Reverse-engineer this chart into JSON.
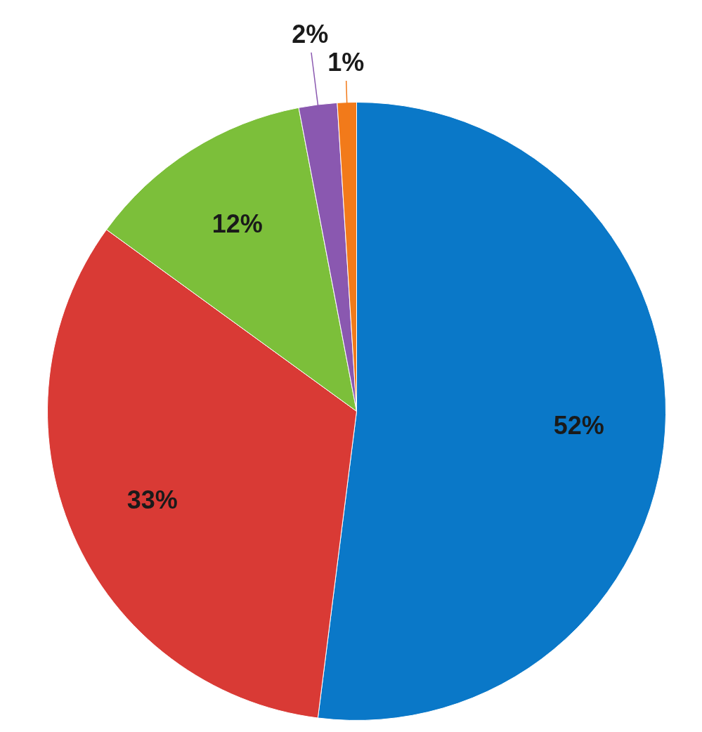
{
  "chart_data": {
    "type": "pie",
    "categories": [
      null,
      null,
      null,
      null,
      null
    ],
    "values": [
      52,
      33,
      12,
      2,
      1
    ],
    "value_labels": [
      "52%",
      "33%",
      "12%",
      "2%",
      "1%"
    ],
    "colors": [
      "#0a78c8",
      "#d93a35",
      "#7cbf3a",
      "#8a58b0",
      "#f27a1a"
    ]
  }
}
